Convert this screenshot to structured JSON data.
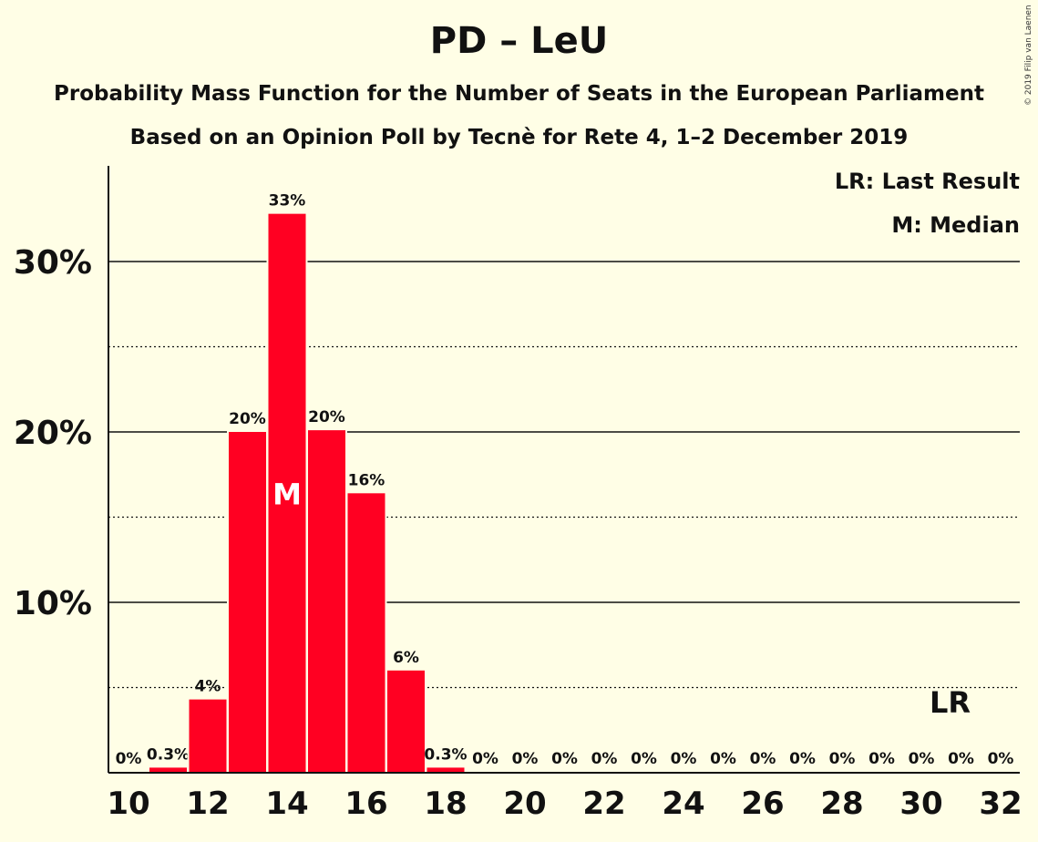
{
  "title": "PD – LeU",
  "subtitle": "Probability Mass Function for the Number of Seats in the European Parliament",
  "subtitle2": "Based on an Opinion Poll by Tecnè for Rete 4, 1–2 December 2019",
  "copyright": "© 2019 Filip van Laenen",
  "legend": {
    "last_result": "LR: Last Result",
    "median": "M: Median"
  },
  "colors": {
    "bar": "#FF0022",
    "background": "#FFFEE6"
  },
  "chart_data": {
    "type": "bar",
    "x": [
      10,
      11,
      12,
      13,
      14,
      15,
      16,
      17,
      18,
      19,
      20,
      21,
      22,
      23,
      24,
      25,
      26,
      27,
      28,
      29,
      30,
      31,
      32
    ],
    "values": [
      0,
      0.3,
      4.3,
      20.0,
      32.8,
      20.1,
      16.4,
      6.0,
      0.3,
      0,
      0,
      0,
      0,
      0,
      0,
      0,
      0,
      0,
      0,
      0,
      0,
      0,
      0
    ],
    "value_labels": [
      "0%",
      "0.3%",
      "4%",
      "20%",
      "33%",
      "20%",
      "16%",
      "6%",
      "0.3%",
      "0%",
      "0%",
      "0%",
      "0%",
      "0%",
      "0%",
      "0%",
      "0%",
      "0%",
      "0%",
      "0%",
      "0%",
      "0%",
      "0%"
    ],
    "x_tick_labels": [
      "10",
      "12",
      "14",
      "16",
      "18",
      "20",
      "22",
      "24",
      "26",
      "28",
      "30",
      "32"
    ],
    "y_tick_labels": [
      "10%",
      "20%",
      "30%"
    ],
    "y_ticks": [
      10,
      20,
      30
    ],
    "y_minor_ticks": [
      5,
      15,
      25
    ],
    "ylim": [
      0,
      35.5
    ],
    "median": 14,
    "median_label": "M",
    "last_result": 31,
    "last_result_label": "LR"
  }
}
